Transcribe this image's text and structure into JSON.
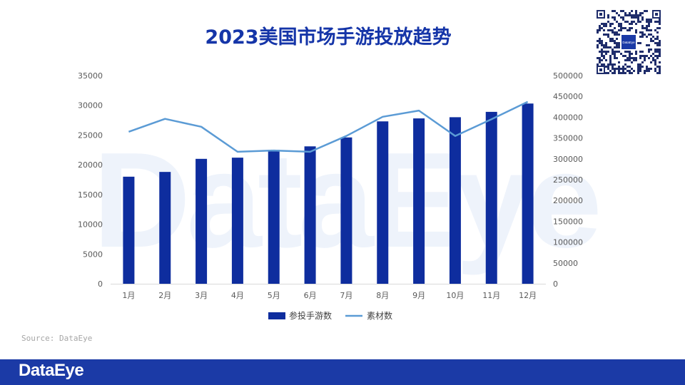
{
  "title": "2023美国市场手游投放趋势",
  "watermark": "DataEye",
  "source": "Source: DataEye",
  "footer_logo": "DataEye",
  "qr_center_text": "DataEye",
  "colors": {
    "bar": "#0e2d9e",
    "line": "#5b9bd5",
    "title": "#1535a8",
    "footer": "#1b3aa6"
  },
  "chart_data": {
    "type": "bar",
    "categories": [
      "1月",
      "2月",
      "3月",
      "4月",
      "5月",
      "6月",
      "7月",
      "8月",
      "9月",
      "10月",
      "11月",
      "12月"
    ],
    "series": [
      {
        "name": "参投手游数",
        "type": "bar",
        "axis": "left",
        "values": [
          18000,
          18800,
          21000,
          21200,
          22500,
          23100,
          24600,
          27300,
          27800,
          28000,
          28900,
          30300
        ]
      },
      {
        "name": "素材数",
        "type": "line",
        "axis": "right",
        "values": [
          365000,
          396000,
          377000,
          317000,
          320000,
          317000,
          355000,
          401000,
          416000,
          355000,
          395000,
          437000
        ]
      }
    ],
    "y_left": {
      "min": 0,
      "max": 35000,
      "ticks": [
        "0",
        "5000",
        "10000",
        "15000",
        "20000",
        "25000",
        "30000",
        "35000"
      ]
    },
    "y_right": {
      "min": 0,
      "max": 500000,
      "ticks": [
        "0",
        "50000",
        "100000",
        "150000",
        "200000",
        "250000",
        "300000",
        "350000",
        "400000",
        "450000",
        "500000"
      ]
    },
    "legend_position": "bottom-center",
    "grid": false
  }
}
